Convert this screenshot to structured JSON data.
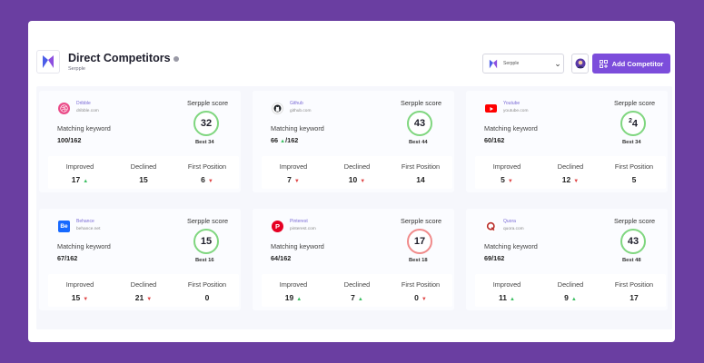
{
  "header": {
    "title": "Direct Competitors",
    "subtitle": "Serpple",
    "select_value": "Serpple",
    "add_button_label": "Add Competitor"
  },
  "labels": {
    "score": "Serpple score",
    "matching": "Matching keyword",
    "improved": "Improved",
    "declined": "Declined",
    "first_position": "First Position"
  },
  "cards": [
    {
      "name": "Dribble",
      "url": "dribble.com",
      "matching": "100/162",
      "score": "32",
      "best": "Best 34",
      "improved": "17",
      "declined": "15",
      "first": "6"
    },
    {
      "name": "Github",
      "url": "github.com",
      "matching_a": "66",
      "matching_b": "/162",
      "score": "43",
      "best": "Best 44",
      "improved": "7",
      "declined": "10",
      "first": "14"
    },
    {
      "name": "Youtube",
      "url": "youtube.com",
      "matching": "60/162",
      "score_small": "2",
      "score_big": "4",
      "best": "Best 34",
      "improved": "5",
      "declined": "12",
      "first": "5"
    },
    {
      "name": "Behance",
      "url": "behance.net",
      "matching": "67/162",
      "score": "15",
      "best": "Best 16",
      "improved": "15",
      "declined": "21",
      "first": "0"
    },
    {
      "name": "Pinterest",
      "url": "pinterest.com",
      "matching": "64/162",
      "score": "17",
      "best": "Best 18",
      "improved": "19",
      "declined": "7",
      "first": "0"
    },
    {
      "name": "Quora",
      "url": "quora.com",
      "matching": "69/162",
      "score": "43",
      "best": "Best 48",
      "improved": "11",
      "declined": "9",
      "first": "17"
    }
  ],
  "colors": {
    "background": "#6a3ea1",
    "accent": "#7c4ddb",
    "ring_good": "#7fd67f",
    "ring_bad": "#f08a8a",
    "up": "#3cbf62",
    "down": "#e04848"
  },
  "icons": [
    "serpple-logo-icon",
    "chevron-down-icon",
    "avatar-icon",
    "grid-plus-icon",
    "dribbble-icon",
    "github-icon",
    "youtube-icon",
    "behance-icon",
    "pinterest-icon",
    "quora-icon",
    "arrow-up-icon",
    "arrow-down-icon"
  ]
}
